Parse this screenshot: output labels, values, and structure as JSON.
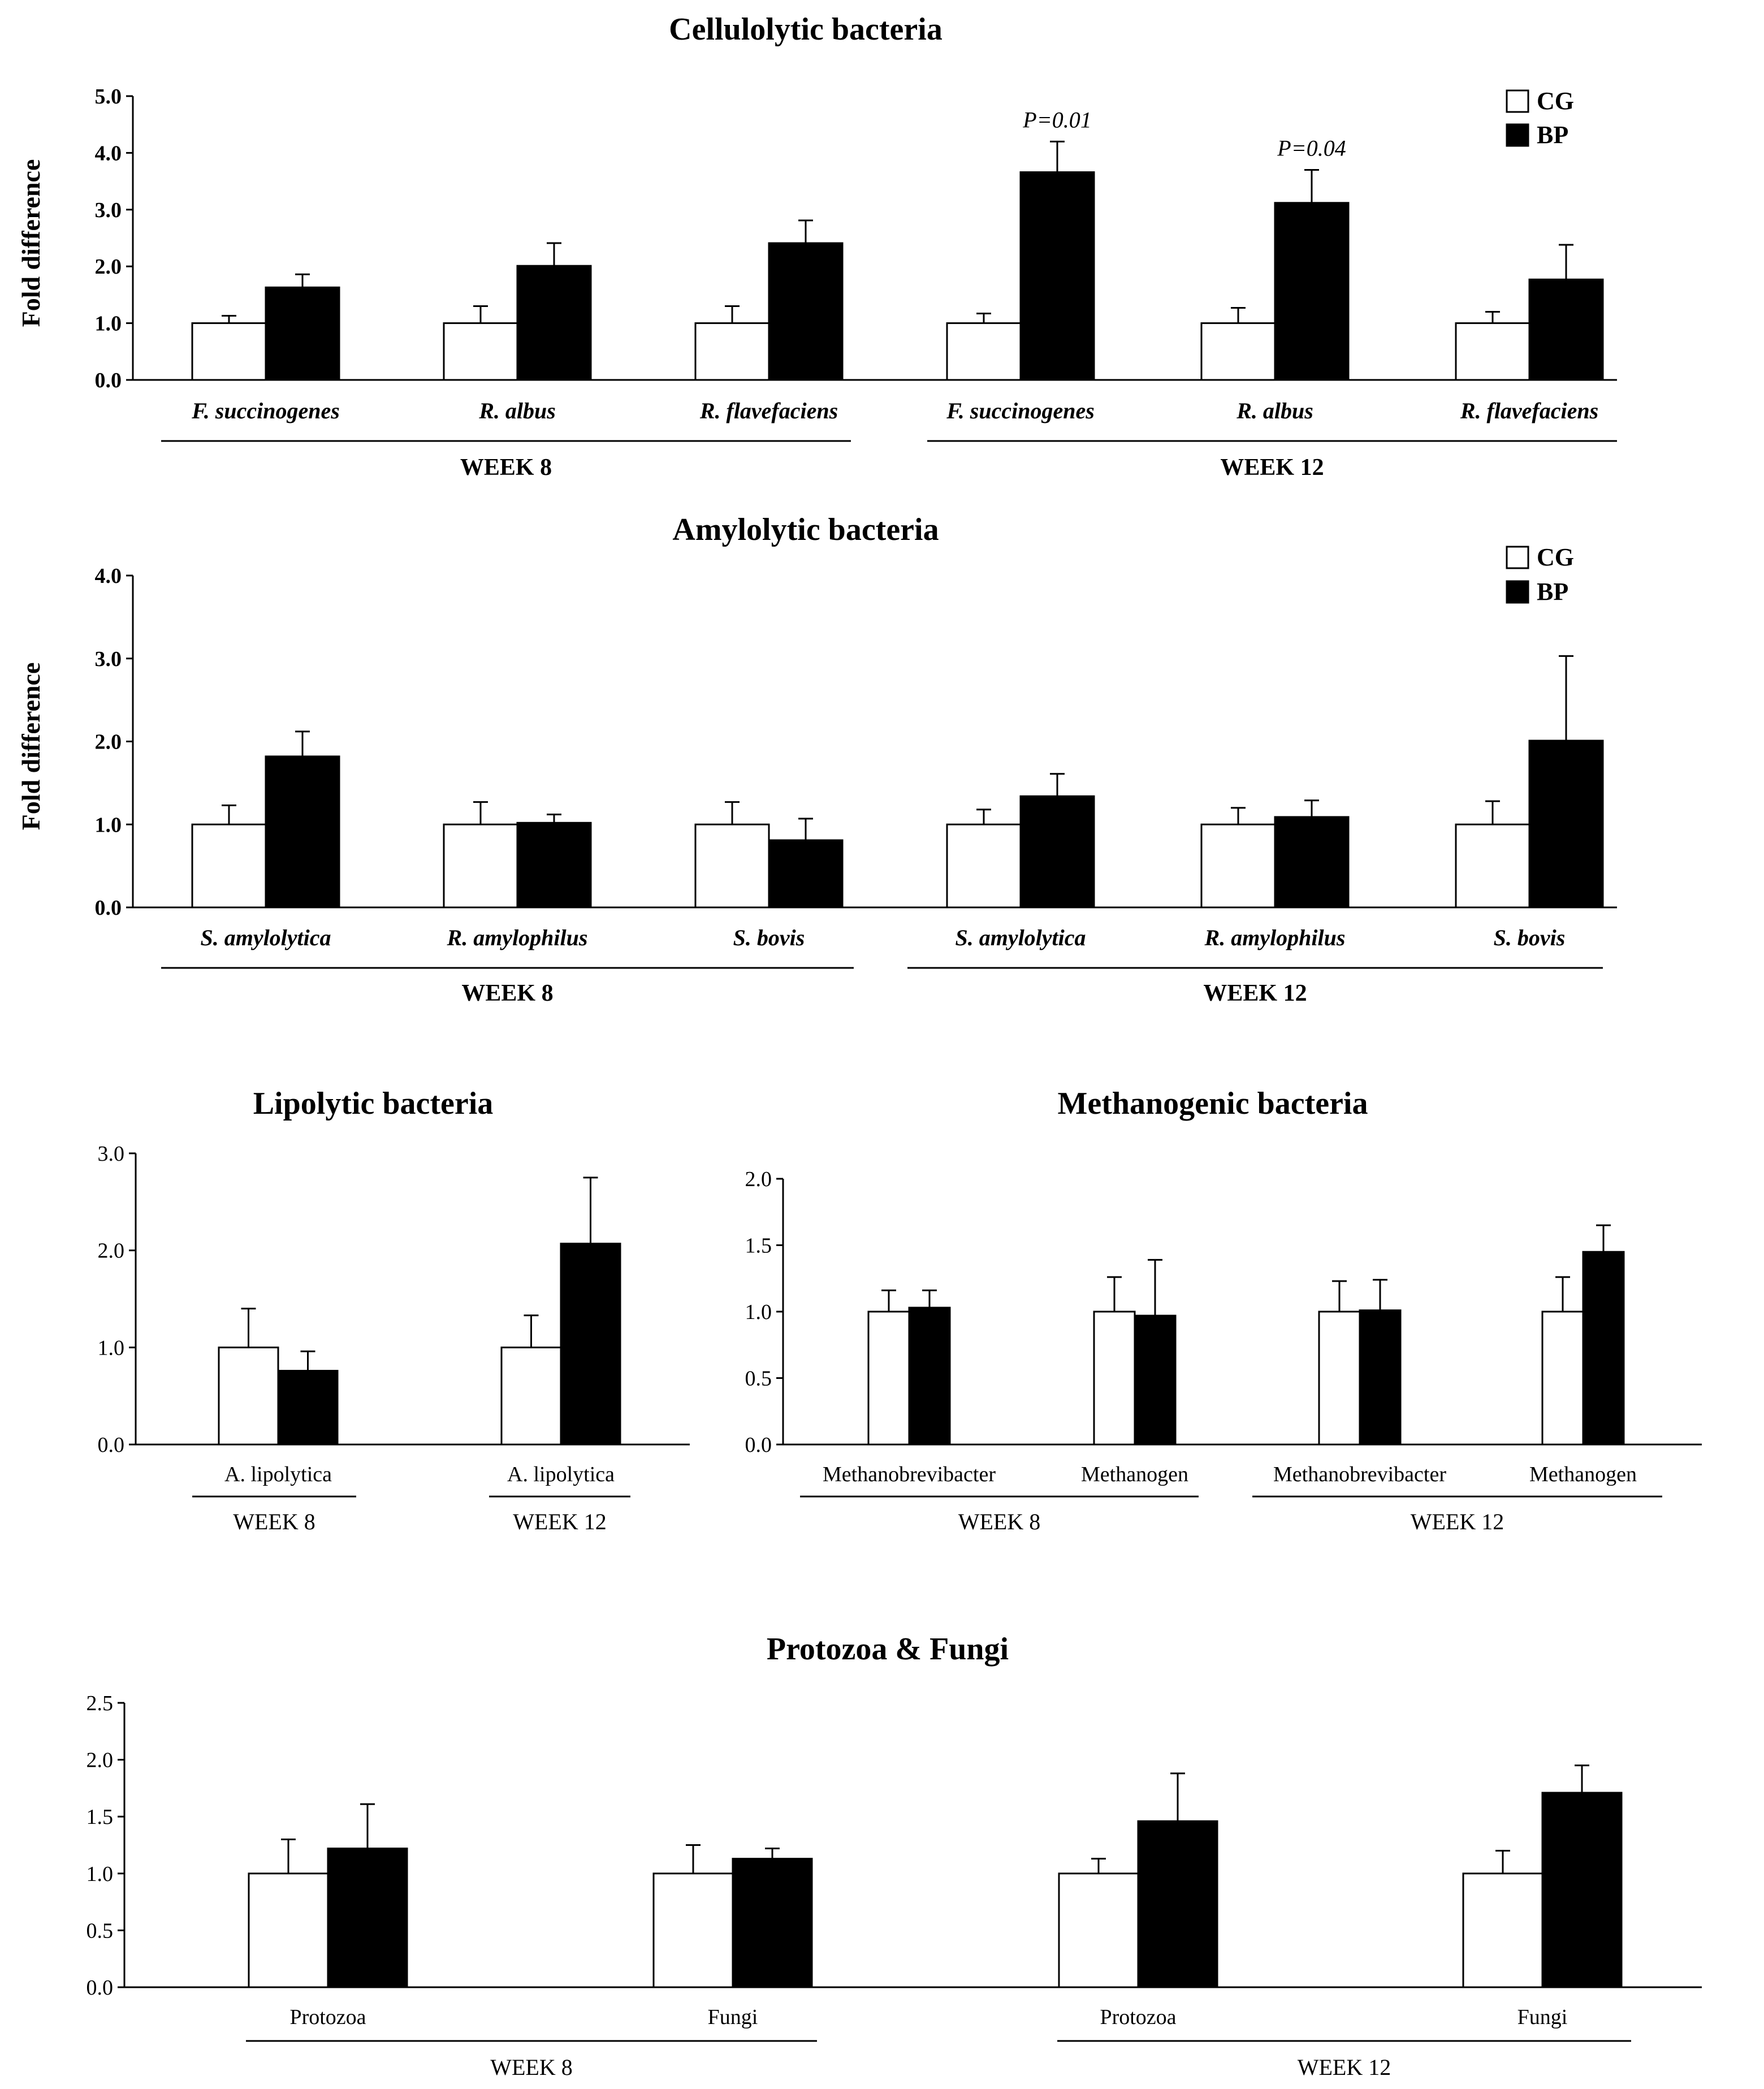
{
  "legend": [
    {
      "label": "CG",
      "color": "#ffffff"
    },
    {
      "label": "BP",
      "color": "#000000"
    }
  ],
  "chart_data": [
    {
      "id": "cellulolytic",
      "type": "bar",
      "title": "Cellulolytic bacteria",
      "ylabel": "Fold difference",
      "ylim": [
        0,
        5
      ],
      "yticks": [
        "0.0",
        "1.0",
        "2.0",
        "3.0",
        "4.0",
        "5.0"
      ],
      "categories": [
        "F. succinogenes",
        "R. albus",
        "R. flavefaciens",
        "F. succinogenes",
        "R. albus",
        "R. flavefaciens"
      ],
      "groups": [
        {
          "label": "WEEK 8",
          "categories": [
            0,
            1,
            2
          ]
        },
        {
          "label": "WEEK 12",
          "categories": [
            3,
            4,
            5
          ]
        }
      ],
      "series": [
        {
          "name": "CG",
          "values": [
            1.0,
            1.0,
            1.0,
            1.0,
            1.0,
            1.0
          ],
          "errors": [
            0.13,
            0.3,
            0.3,
            0.17,
            0.27,
            0.2
          ]
        },
        {
          "name": "BP",
          "values": [
            1.63,
            2.01,
            2.41,
            3.66,
            3.12,
            1.77
          ],
          "errors": [
            0.23,
            0.4,
            0.4,
            0.54,
            0.58,
            0.61
          ]
        }
      ],
      "annotations": [
        {
          "category": 3,
          "text": "P=0.01"
        },
        {
          "category": 4,
          "text": "P=0.04"
        }
      ]
    },
    {
      "id": "amylolytic",
      "type": "bar",
      "title": "Amylolytic bacteria",
      "ylabel": "Fold difference",
      "ylim": [
        0,
        4
      ],
      "yticks": [
        "0.0",
        "1.0",
        "2.0",
        "3.0",
        "4.0"
      ],
      "categories": [
        "S. amylolytica",
        "R. amylophilus",
        "S. bovis",
        "S. amylolytica",
        "R. amylophilus",
        "S. bovis"
      ],
      "groups": [
        {
          "label": "WEEK 8",
          "categories": [
            0,
            1,
            2
          ]
        },
        {
          "label": "WEEK 12",
          "categories": [
            3,
            4,
            5
          ]
        }
      ],
      "series": [
        {
          "name": "CG",
          "values": [
            1.0,
            1.0,
            1.0,
            1.0,
            1.0,
            1.0
          ],
          "errors": [
            0.23,
            0.27,
            0.27,
            0.18,
            0.2,
            0.28
          ]
        },
        {
          "name": "BP",
          "values": [
            1.82,
            1.02,
            0.81,
            1.34,
            1.09,
            2.01
          ],
          "errors": [
            0.3,
            0.1,
            0.26,
            0.27,
            0.2,
            1.02
          ]
        }
      ]
    },
    {
      "id": "lipolytic",
      "type": "bar",
      "title": "Lipolytic bacteria",
      "ylabel": "",
      "ylim": [
        0,
        3
      ],
      "yticks": [
        "0.0",
        "1.0",
        "2.0",
        "3.0"
      ],
      "categories": [
        "A. lipolytica",
        "A. lipolytica"
      ],
      "groups": [
        {
          "label": "WEEK 8",
          "categories": [
            0
          ]
        },
        {
          "label": "WEEK 12",
          "categories": [
            1
          ]
        }
      ],
      "series": [
        {
          "name": "CG",
          "values": [
            1.0,
            1.0
          ],
          "errors": [
            0.4,
            0.33
          ]
        },
        {
          "name": "BP",
          "values": [
            0.76,
            2.07
          ],
          "errors": [
            0.2,
            0.68
          ]
        }
      ]
    },
    {
      "id": "methanogenic",
      "type": "bar",
      "title": "Methanogenic bacteria",
      "ylabel": "",
      "ylim": [
        0,
        2
      ],
      "yticks": [
        "0.0",
        "0.5",
        "1.0",
        "1.5",
        "2.0"
      ],
      "categories": [
        "Methanobrevibacter",
        "Methanogen",
        "Methanobrevibacter",
        "Methanogen"
      ],
      "groups": [
        {
          "label": "WEEK 8",
          "categories": [
            0,
            1
          ]
        },
        {
          "label": "WEEK 12",
          "categories": [
            2,
            3
          ]
        }
      ],
      "series": [
        {
          "name": "CG",
          "values": [
            1.0,
            1.0,
            1.0,
            1.0
          ],
          "errors": [
            0.16,
            0.26,
            0.23,
            0.26
          ]
        },
        {
          "name": "BP",
          "values": [
            1.03,
            0.97,
            1.01,
            1.45
          ],
          "errors": [
            0.13,
            0.42,
            0.23,
            0.2
          ]
        }
      ]
    },
    {
      "id": "protozoa_fungi",
      "type": "bar",
      "title": "Protozoa & Fungi",
      "ylabel": "",
      "ylim": [
        0,
        2.5
      ],
      "yticks": [
        "0.0",
        "0.5",
        "1.0",
        "1.5",
        "2.0",
        "2.5"
      ],
      "categories": [
        "Protozoa",
        "Fungi",
        "Protozoa",
        "Fungi"
      ],
      "groups": [
        {
          "label": "WEEK 8",
          "categories": [
            0,
            1
          ]
        },
        {
          "label": "WEEK 12",
          "categories": [
            2,
            3
          ]
        }
      ],
      "series": [
        {
          "name": "CG",
          "values": [
            1.0,
            1.0,
            1.0,
            1.0
          ],
          "errors": [
            0.3,
            0.25,
            0.13,
            0.2
          ]
        },
        {
          "name": "BP",
          "values": [
            1.22,
            1.13,
            1.46,
            1.71
          ],
          "errors": [
            0.39,
            0.09,
            0.42,
            0.24
          ]
        }
      ]
    }
  ]
}
